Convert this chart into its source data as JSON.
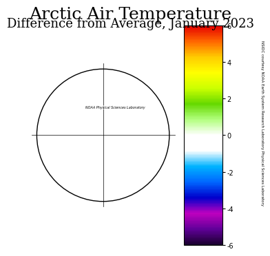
{
  "title1": "Arctic Air Temperature",
  "title2": "Difference from Average, January 2023",
  "colorbar_label_right": "NSIDC courtesy NOAA Earth System Research Laboratory Physical Sciences Laboratory",
  "noaa_label": "NOAA Physical Sciences Laboratory",
  "colorbar_ticks": [
    -6,
    -4,
    -2,
    0,
    2,
    4,
    6
  ],
  "colorbar_colors": [
    "#1a0030",
    "#6600aa",
    "#cc00cc",
    "#0000cc",
    "#0066ff",
    "#00aaff",
    "#ffffff",
    "#ffffff",
    "#aaffaa",
    "#66cc00",
    "#ccff00",
    "#ffff00",
    "#ffcc00",
    "#ff6600",
    "#ff0000",
    "#cc0000"
  ],
  "vmin": -6,
  "vmax": 6,
  "bg_color": "#ffffff",
  "title1_fontsize": 18,
  "title2_fontsize": 13,
  "fig_width": 3.5,
  "fig_height": 3.71
}
